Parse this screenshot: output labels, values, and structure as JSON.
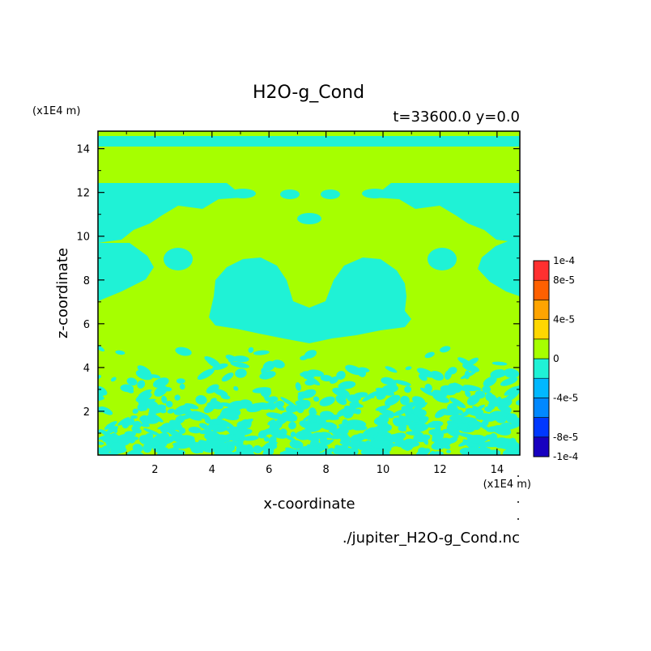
{
  "chart_data": {
    "type": "heatmap",
    "title": "H2O-g_Cond",
    "subtitle": "t=33600.0 y=0.0",
    "xlabel": "x-coordinate",
    "ylabel": "z-coordinate",
    "x_unit": "(x1E4 m)",
    "y_unit": "(x1E4 m)",
    "source_file": "./jupiter_H2O-g_Cond.nc",
    "xlim": [
      0,
      14.8
    ],
    "ylim": [
      0,
      14.8
    ],
    "x_ticks": [
      2,
      4,
      6,
      8,
      10,
      12,
      14
    ],
    "y_ticks": [
      2,
      4,
      6,
      8,
      10,
      12,
      14
    ],
    "x_tick_labels": [
      "2",
      "4",
      "6",
      "8",
      "10",
      "12",
      "14"
    ],
    "y_tick_labels": [
      "2",
      "4",
      "6",
      "8",
      "10",
      "12",
      "14"
    ],
    "colorbar": {
      "placement": "right",
      "min": -0.0001,
      "max": 0.0001,
      "levels": [
        -0.0001,
        -8e-05,
        -6e-05,
        -4e-05,
        -2e-05,
        0,
        2e-05,
        4e-05,
        6e-05,
        8e-05,
        0.0001
      ],
      "colors": [
        "#1800c0",
        "#0038ff",
        "#0088ff",
        "#00b8ff",
        "#1ff2d6",
        "#a6ff00",
        "#ffd700",
        "#ffa400",
        "#ff6000",
        "#ff3030"
      ],
      "tick_values": [
        0.0001,
        8e-05,
        4e-05,
        0,
        -4e-05,
        -8e-05,
        -0.0001
      ],
      "tick_labels": [
        "1e-4",
        "8e-5",
        "4e-5",
        "0",
        "-4e-5",
        "-8e-5",
        "-1e-4"
      ]
    },
    "field_colors": {
      "zero_to_positive": "#a6ff00",
      "negative_small": "#1ff2d6"
    }
  }
}
